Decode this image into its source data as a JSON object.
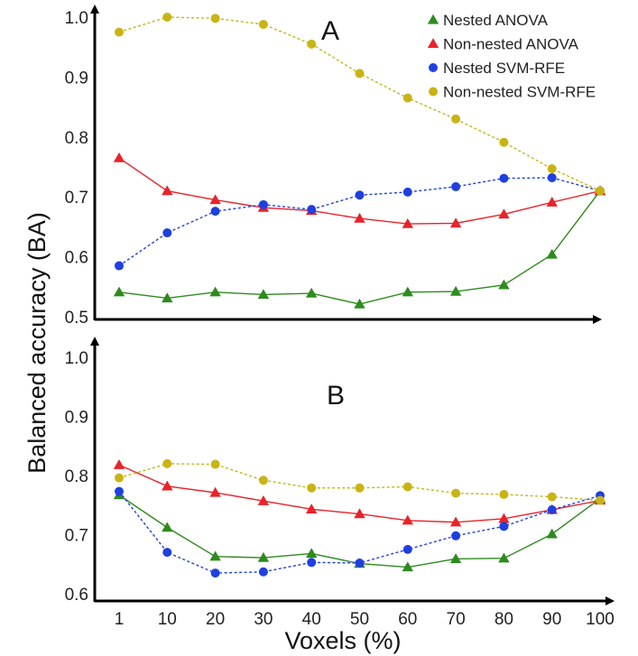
{
  "ylabel": "Balanced accuracy (BA)",
  "xlabel": "Voxels (%)",
  "legend": [
    {
      "label": "Nested ANOVA",
      "color": "#2e8b1e",
      "marker": "triangle"
    },
    {
      "label": "Non-nested ANOVA",
      "color": "#e8232a",
      "marker": "triangle"
    },
    {
      "label": "Nested SVM-RFE",
      "color": "#1f3fe0",
      "marker": "circle"
    },
    {
      "label": "Non-nested SVM-RFE",
      "color": "#c8b414",
      "marker": "circle"
    }
  ],
  "chart_data": [
    {
      "type": "line",
      "panel_label": "A",
      "x": [
        1,
        10,
        20,
        30,
        40,
        50,
        60,
        70,
        80,
        90,
        100
      ],
      "x_tick_labels": [
        "1",
        "10",
        "20",
        "30",
        "40",
        "50",
        "60",
        "70",
        "80",
        "90",
        "100"
      ],
      "ylim": [
        0.5,
        1.0
      ],
      "y_ticks": [
        0.5,
        0.6,
        0.7,
        0.8,
        0.9,
        1.0
      ],
      "y_tick_labels": [
        "0.5",
        "0.6",
        "0.7",
        "0.8",
        "0.9",
        "1.0"
      ],
      "legend_position": "top-right",
      "series": [
        {
          "name": "Nested ANOVA",
          "values": [
            0.541,
            0.531,
            0.541,
            0.537,
            0.539,
            0.521,
            0.541,
            0.542,
            0.553,
            0.604,
            0.71
          ]
        },
        {
          "name": "Non-nested ANOVA",
          "values": [
            0.765,
            0.71,
            0.695,
            0.682,
            0.677,
            0.664,
            0.655,
            0.656,
            0.671,
            0.691,
            0.71
          ]
        },
        {
          "name": "Nested SVM-RFE",
          "values": [
            0.585,
            0.64,
            0.676,
            0.687,
            0.679,
            0.703,
            0.708,
            0.717,
            0.731,
            0.732,
            0.71
          ]
        },
        {
          "name": "Non-nested SVM-RFE",
          "values": [
            0.975,
            1.0,
            0.998,
            0.988,
            0.955,
            0.906,
            0.865,
            0.83,
            0.791,
            0.747,
            0.71
          ]
        }
      ]
    },
    {
      "type": "line",
      "panel_label": "B",
      "x": [
        1,
        10,
        20,
        30,
        40,
        50,
        60,
        70,
        80,
        90,
        100
      ],
      "x_tick_labels": [
        "1",
        "10",
        "20",
        "30",
        "40",
        "50",
        "60",
        "70",
        "80",
        "90",
        "100"
      ],
      "ylim": [
        0.6,
        1.0
      ],
      "y_ticks": [
        0.6,
        0.7,
        0.8,
        0.9,
        1.0
      ],
      "y_tick_labels": [
        "0.6",
        "0.7",
        "0.8",
        "0.9",
        "1.0"
      ],
      "series": [
        {
          "name": "Nested ANOVA",
          "values": [
            0.767,
            0.712,
            0.663,
            0.661,
            0.668,
            0.651,
            0.645,
            0.659,
            0.66,
            0.701,
            0.761
          ]
        },
        {
          "name": "Non-nested ANOVA",
          "values": [
            0.818,
            0.782,
            0.771,
            0.757,
            0.743,
            0.735,
            0.724,
            0.721,
            0.727,
            0.742,
            0.758
          ]
        },
        {
          "name": "Nested SVM-RFE",
          "values": [
            0.773,
            0.67,
            0.635,
            0.637,
            0.653,
            0.652,
            0.675,
            0.698,
            0.714,
            0.742,
            0.766
          ]
        },
        {
          "name": "Non-nested SVM-RFE",
          "values": [
            0.796,
            0.82,
            0.819,
            0.792,
            0.779,
            0.779,
            0.781,
            0.77,
            0.768,
            0.764,
            0.758
          ]
        }
      ]
    }
  ]
}
